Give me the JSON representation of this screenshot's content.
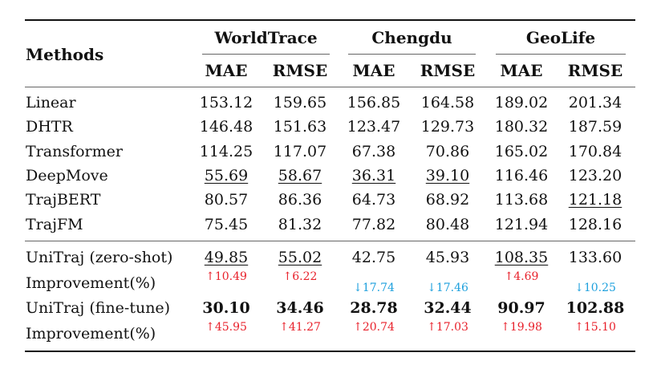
{
  "table": {
    "corner_header": "Methods",
    "datasets": [
      "WorldTrace",
      "Chengdu",
      "GeoLife"
    ],
    "metrics": [
      "MAE",
      "RMSE",
      "MAE",
      "RMSE",
      "MAE",
      "RMSE"
    ],
    "baseline_rows": [
      {
        "method": "Linear",
        "values": [
          "153.12",
          "159.65",
          "156.85",
          "164.58",
          "189.02",
          "201.34"
        ]
      },
      {
        "method": "DHTR",
        "values": [
          "146.48",
          "151.63",
          "123.47",
          "129.73",
          "180.32",
          "187.59"
        ]
      },
      {
        "method": "Transformer",
        "values": [
          "114.25",
          "117.07",
          "67.38",
          "70.86",
          "165.02",
          "170.84"
        ]
      },
      {
        "method": "DeepMove",
        "values": [
          "55.69",
          "58.67",
          "36.31",
          "39.10",
          "116.46",
          "123.20"
        ]
      },
      {
        "method": "TrajBERT",
        "values": [
          "80.57",
          "86.36",
          "64.73",
          "68.92",
          "113.68",
          "121.18"
        ]
      },
      {
        "method": "TrajFM",
        "values": [
          "75.45",
          "81.32",
          "77.82",
          "80.48",
          "121.94",
          "128.16"
        ]
      }
    ],
    "zero_shot": {
      "method": "UniTraj (zero-shot)",
      "values": [
        "49.85",
        "55.02",
        "42.75",
        "45.93",
        "108.35",
        "133.60"
      ],
      "improvement_label": "Improvement(%)",
      "improvements": [
        "↑10.49",
        "↑6.22",
        "↓17.74",
        "↓17.46",
        "↑4.69",
        "↓10.25"
      ]
    },
    "fine_tune": {
      "method": "UniTraj (fine-tune)",
      "values": [
        "30.10",
        "34.46",
        "28.78",
        "32.44",
        "90.97",
        "102.88"
      ],
      "improvement_label": "Improvement(%)",
      "improvements": [
        "↑45.95",
        "↑41.27",
        "↑20.74",
        "↑17.03",
        "↑19.98",
        "↑15.10"
      ]
    },
    "colors": {
      "up": "#e8212b",
      "down": "#1ea0dd"
    }
  }
}
